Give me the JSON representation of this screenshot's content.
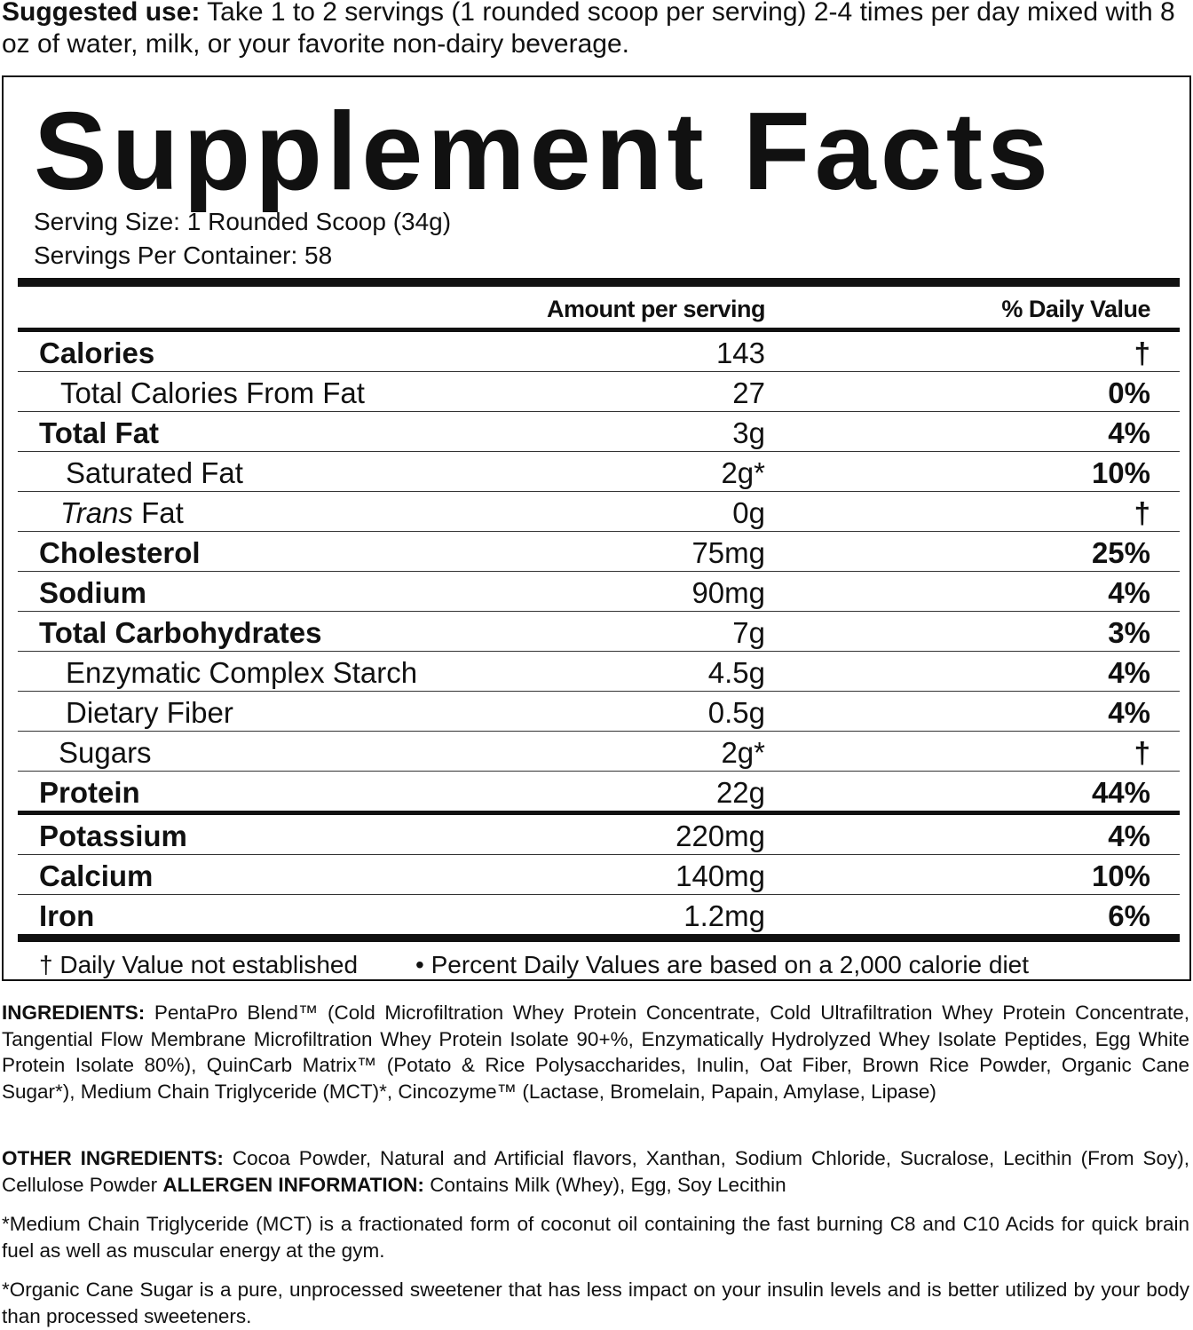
{
  "suggested_use": {
    "label": "Suggested use:",
    "text": "Take 1 to 2 servings (1 rounded scoop per serving) 2-4 times per day mixed with 8 oz of water, milk, or your favorite non-dairy beverage."
  },
  "facts": {
    "title": "Supplement Facts",
    "serving_size": "Serving Size: 1 Rounded Scoop (34g)",
    "servings_per_container": "Servings Per Container: 58",
    "header": {
      "amount": "Amount per serving",
      "daily_value": "% Daily Value"
    },
    "rows": [
      {
        "name": "Calories",
        "amount": "143",
        "daily_value": "†"
      },
      {
        "name": "Total Calories From Fat",
        "amount": "27",
        "daily_value": "0%"
      },
      {
        "name": "Total Fat",
        "amount": "3g",
        "daily_value": "4%"
      },
      {
        "name": "Saturated Fat",
        "amount": "2g*",
        "daily_value": "10%"
      },
      {
        "name_italic": "Trans",
        "name": "Fat",
        "amount": "0g",
        "daily_value": "†"
      },
      {
        "name": "Cholesterol",
        "amount": "75mg",
        "daily_value": "25%"
      },
      {
        "name": "Sodium",
        "amount": "90mg",
        "daily_value": "4%"
      },
      {
        "name": "Total Carbohydrates",
        "amount": "7g",
        "daily_value": "3%"
      },
      {
        "name": "Enzymatic Complex Starch",
        "amount": "4.5g",
        "daily_value": "4%"
      },
      {
        "name": "Dietary Fiber",
        "amount": "0.5g",
        "daily_value": "4%"
      },
      {
        "name": "Sugars",
        "amount": "2g*",
        "daily_value": "†"
      },
      {
        "name": "Protein",
        "amount": "22g",
        "daily_value": "44%"
      },
      {
        "name": "Potassium",
        "amount": "220mg",
        "daily_value": "4%"
      },
      {
        "name": "Calcium",
        "amount": "140mg",
        "daily_value": "10%"
      },
      {
        "name": "Iron",
        "amount": "1.2mg",
        "daily_value": "6%"
      }
    ],
    "footnotes": [
      "† Daily Value not established",
      "• Percent Daily Values are based on a 2,000 calorie diet"
    ]
  },
  "ingredients": {
    "label": "INGREDIENTS:",
    "text": "PentaPro Blend™ (Cold Microfiltration Whey Protein Concentrate, Cold Ultrafiltration Whey Protein Concentrate, Tangential Flow Membrane Microfiltration Whey Protein Isolate 90+%, Enzymatically Hydrolyzed Whey Isolate Peptides, Egg White Protein Isolate 80%),  QuinCarb Matrix™ (Potato & Rice Polysaccharides, Inulin, Oat Fiber, Brown Rice Powder, Organic Cane Sugar*), Medium Chain Triglyceride (MCT)*, Cincozyme™ (Lactase, Bromelain, Papain, Amylase, Lipase)"
  },
  "other_ingredients": {
    "label": "OTHER INGREDIENTS:",
    "text": "Cocoa Powder, Natural and Artificial flavors, Xanthan, Sodium Chloride, Sucralose, Lecithin (From Soy), Cellulose Powder",
    "allergen_label": "ALLERGEN INFORMATION:",
    "allergen_text": "Contains Milk (Whey), Egg, Soy Lecithin"
  },
  "notes": [
    "*Medium Chain Triglyceride (MCT) is a fractionated form of coconut oil containing the fast burning C8 and C10 Acids for quick brain fuel as well as muscular energy at the gym.",
    "*Organic Cane Sugar is a pure, unprocessed sweetener that has less impact on your insulin levels and is better utilized by your body than processed sweeteners."
  ]
}
